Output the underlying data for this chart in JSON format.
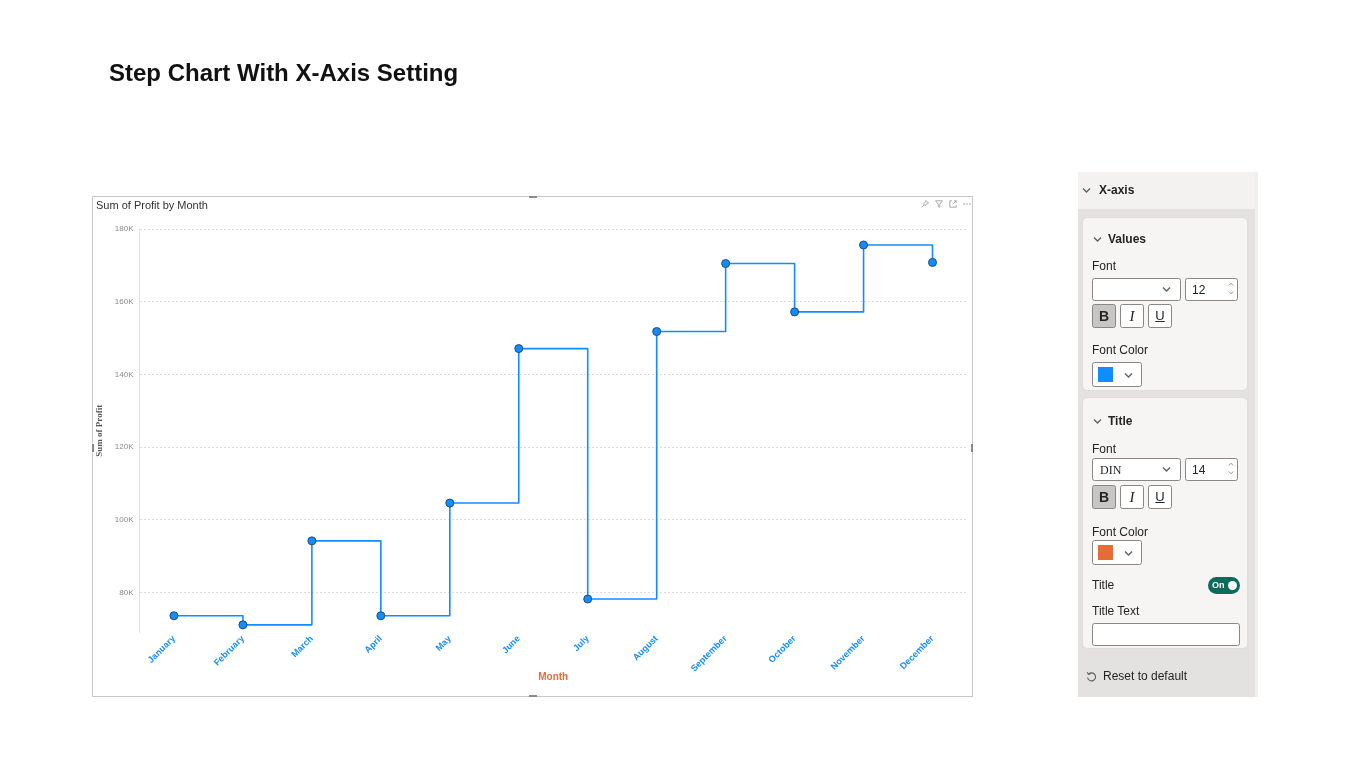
{
  "chart_data": {
    "type": "step",
    "title": "Step Chart With X-Axis Setting",
    "subtitle": "Sum of Profit by Month",
    "xlabel": "Month",
    "ylabel": "Sum of Profit",
    "categories": [
      "January",
      "February",
      "March",
      "April",
      "May",
      "June",
      "July",
      "August",
      "September",
      "October",
      "November",
      "December"
    ],
    "series": [
      {
        "color": "#118dff",
        "values": [
          73600,
          71100,
          94200,
          73600,
          104600,
          147100,
          78200,
          151800,
          170500,
          157200,
          175600,
          170800
        ]
      }
    ],
    "ylim": [
      69000,
      180000
    ],
    "yticks": [
      {
        "value": 80000,
        "label": "80K"
      },
      {
        "value": 100000,
        "label": "100K"
      },
      {
        "value": 120000,
        "label": "120K"
      },
      {
        "value": 140000,
        "label": "140K"
      },
      {
        "value": 160000,
        "label": "160K"
      },
      {
        "value": 180000,
        "label": "180K"
      }
    ],
    "grid": "y",
    "legend": false,
    "marker": "circle",
    "line_style": "solid",
    "annotations": [
      "X-axis",
      "Values",
      "Font",
      "12",
      "B",
      "I",
      "U",
      "Font Color",
      "Title",
      "Font",
      "DIN",
      "14",
      "B",
      "I",
      "U",
      "Font Color",
      "Title",
      "On",
      "Title Text",
      "Reset to default"
    ]
  }
}
